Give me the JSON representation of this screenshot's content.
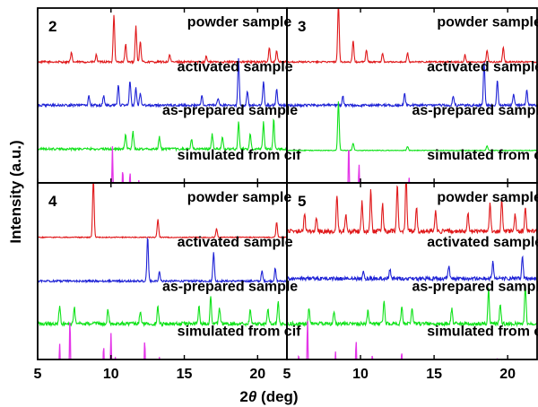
{
  "figure": {
    "ylabel": "Intensity (a.u.)",
    "xlabel_prefix": "2",
    "xlabel_theta": "θ",
    "xlabel_suffix": " (deg)"
  },
  "colors": {
    "powder": "#e0191b",
    "activated": "#1f23d6",
    "as_prepared": "#10e21a",
    "simulated": "#e436e8"
  },
  "chart_data": [
    {
      "type": "line",
      "panel": "2",
      "xlim": [
        5,
        22
      ],
      "xticks": [
        5,
        10,
        15,
        20
      ],
      "series": [
        {
          "name": "powder sample",
          "color": "#e0191b",
          "baseline": 0.02,
          "noise": 0.07,
          "peaks": [
            [
              7.3,
              0.15
            ],
            [
              9.0,
              0.12
            ],
            [
              10.2,
              0.8
            ],
            [
              11.0,
              0.3
            ],
            [
              11.7,
              0.6
            ],
            [
              12.0,
              0.35
            ],
            [
              14.0,
              0.12
            ],
            [
              16.5,
              0.1
            ],
            [
              20.8,
              0.25
            ],
            [
              21.3,
              0.2
            ]
          ]
        },
        {
          "name": "activated sample",
          "color": "#1f23d6",
          "baseline": 0.05,
          "noise": 0.1,
          "peaks": [
            [
              8.5,
              0.2
            ],
            [
              9.5,
              0.2
            ],
            [
              10.5,
              0.4
            ],
            [
              11.3,
              0.5
            ],
            [
              11.7,
              0.35
            ],
            [
              12.0,
              0.25
            ],
            [
              16.2,
              0.2
            ],
            [
              17.3,
              0.15
            ],
            [
              18.7,
              0.95
            ],
            [
              19.3,
              0.3
            ],
            [
              20.4,
              0.5
            ],
            [
              21.3,
              0.35
            ]
          ]
        },
        {
          "name": "as-prepared sample",
          "color": "#10e21a",
          "baseline": 0.05,
          "noise": 0.1,
          "peaks": [
            [
              11.0,
              0.3
            ],
            [
              11.5,
              0.35
            ],
            [
              13.3,
              0.25
            ],
            [
              15.5,
              0.2
            ],
            [
              16.9,
              0.3
            ],
            [
              17.6,
              0.25
            ],
            [
              18.7,
              0.55
            ],
            [
              19.5,
              0.3
            ],
            [
              20.4,
              0.55
            ],
            [
              21.1,
              0.6
            ]
          ]
        },
        {
          "name": "simulated from cif",
          "color": "#e436e8",
          "baseline": 0.0,
          "noise": 0.0,
          "peaks": [
            [
              6.0,
              0.25
            ],
            [
              10.1,
              0.95
            ],
            [
              10.8,
              0.5
            ],
            [
              11.3,
              0.45
            ],
            [
              11.9,
              0.3
            ],
            [
              13.2,
              0.15
            ],
            [
              14.3,
              0.1
            ],
            [
              15.2,
              0.1
            ],
            [
              16.0,
              0.12
            ],
            [
              17.2,
              0.15
            ],
            [
              18.5,
              0.2
            ],
            [
              19.4,
              0.15
            ],
            [
              20.5,
              0.2
            ],
            [
              21.5,
              0.15
            ]
          ]
        }
      ]
    },
    {
      "type": "line",
      "panel": "3",
      "xlim": [
        5,
        22
      ],
      "xticks": [
        5,
        10,
        15,
        20
      ],
      "series": [
        {
          "name": "powder sample",
          "color": "#e0191b",
          "baseline": 0.02,
          "noise": 0.05,
          "peaks": [
            [
              8.5,
              1.0
            ],
            [
              9.5,
              0.35
            ],
            [
              10.4,
              0.2
            ],
            [
              11.5,
              0.15
            ],
            [
              13.2,
              0.15
            ],
            [
              17.1,
              0.12
            ],
            [
              18.6,
              0.2
            ],
            [
              19.7,
              0.25
            ]
          ]
        },
        {
          "name": "activated sample",
          "color": "#1f23d6",
          "baseline": 0.05,
          "noise": 0.1,
          "peaks": [
            [
              8.8,
              0.2
            ],
            [
              13.0,
              0.25
            ],
            [
              16.3,
              0.2
            ],
            [
              18.4,
              0.9
            ],
            [
              19.3,
              0.5
            ],
            [
              20.4,
              0.25
            ],
            [
              21.3,
              0.3
            ]
          ]
        },
        {
          "name": "as-prepared sample",
          "color": "#10e21a",
          "baseline": 0.02,
          "noise": 0.03,
          "peaks": [
            [
              8.5,
              1.0
            ],
            [
              9.5,
              0.15
            ],
            [
              13.2,
              0.08
            ],
            [
              18.6,
              0.1
            ]
          ]
        },
        {
          "name": "simulated from cif",
          "color": "#e436e8",
          "baseline": 0.0,
          "noise": 0.0,
          "peaks": [
            [
              9.2,
              1.0
            ],
            [
              9.9,
              0.6
            ],
            [
              10.5,
              0.15
            ],
            [
              12.0,
              0.08
            ],
            [
              13.3,
              0.35
            ],
            [
              15.7,
              0.1
            ],
            [
              17.0,
              0.1
            ],
            [
              18.6,
              0.12
            ],
            [
              19.5,
              0.15
            ],
            [
              21.2,
              0.1
            ]
          ]
        }
      ]
    },
    {
      "type": "line",
      "panel": "4",
      "xlim": [
        5,
        22
      ],
      "xticks": [
        5,
        10,
        15,
        20
      ],
      "series": [
        {
          "name": "powder sample",
          "color": "#e0191b",
          "baseline": 0.02,
          "noise": 0.03,
          "peaks": [
            [
              8.8,
              1.0
            ],
            [
              13.2,
              0.3
            ],
            [
              17.2,
              0.15
            ],
            [
              21.3,
              0.25
            ]
          ]
        },
        {
          "name": "activated sample",
          "color": "#1f23d6",
          "baseline": 0.05,
          "noise": 0.08,
          "peaks": [
            [
              12.5,
              0.9
            ],
            [
              13.3,
              0.2
            ],
            [
              17.0,
              0.6
            ],
            [
              20.3,
              0.2
            ],
            [
              21.2,
              0.25
            ]
          ]
        },
        {
          "name": "as-prepared sample",
          "color": "#10e21a",
          "baseline": 0.08,
          "noise": 0.15,
          "peaks": [
            [
              6.5,
              0.35
            ],
            [
              7.5,
              0.35
            ],
            [
              9.8,
              0.3
            ],
            [
              12.0,
              0.25
            ],
            [
              13.2,
              0.35
            ],
            [
              16.0,
              0.35
            ],
            [
              16.8,
              0.55
            ],
            [
              17.4,
              0.3
            ],
            [
              19.5,
              0.3
            ],
            [
              20.7,
              0.3
            ],
            [
              21.4,
              0.45
            ]
          ]
        },
        {
          "name": "simulated from cif",
          "color": "#e436e8",
          "baseline": 0.0,
          "noise": 0.0,
          "peaks": [
            [
              6.5,
              0.55
            ],
            [
              7.2,
              1.0
            ],
            [
              9.5,
              0.5
            ],
            [
              10.0,
              0.75
            ],
            [
              10.3,
              0.3
            ],
            [
              12.3,
              0.6
            ],
            [
              13.3,
              0.3
            ],
            [
              14.6,
              0.15
            ],
            [
              15.4,
              0.15
            ],
            [
              16.0,
              0.25
            ],
            [
              16.6,
              0.2
            ],
            [
              16.9,
              0.2
            ],
            [
              17.5,
              0.15
            ],
            [
              20.0,
              0.15
            ],
            [
              20.8,
              0.2
            ],
            [
              21.6,
              0.15
            ]
          ]
        }
      ]
    },
    {
      "type": "line",
      "panel": "5",
      "xlim": [
        5,
        22
      ],
      "xticks": [
        5,
        10,
        15,
        20
      ],
      "series": [
        {
          "name": "powder sample",
          "color": "#e0191b",
          "baseline": 0.12,
          "noise": 0.15,
          "peaks": [
            [
              6.2,
              0.3
            ],
            [
              7.0,
              0.25
            ],
            [
              8.4,
              0.6
            ],
            [
              9.0,
              0.3
            ],
            [
              10.1,
              0.5
            ],
            [
              10.7,
              0.7
            ],
            [
              11.5,
              0.45
            ],
            [
              12.5,
              0.8
            ],
            [
              13.1,
              0.95
            ],
            [
              13.8,
              0.4
            ],
            [
              15.1,
              0.35
            ],
            [
              17.3,
              0.3
            ],
            [
              18.8,
              0.5
            ],
            [
              19.6,
              0.55
            ],
            [
              20.5,
              0.3
            ],
            [
              21.2,
              0.4
            ]
          ]
        },
        {
          "name": "activated sample",
          "color": "#1f23d6",
          "baseline": 0.1,
          "noise": 0.15,
          "peaks": [
            [
              10.2,
              0.15
            ],
            [
              12.0,
              0.2
            ],
            [
              16.0,
              0.25
            ],
            [
              19.0,
              0.35
            ],
            [
              21.0,
              0.45
            ]
          ]
        },
        {
          "name": "as-prepared sample",
          "color": "#10e21a",
          "baseline": 0.08,
          "noise": 0.15,
          "peaks": [
            [
              6.5,
              0.3
            ],
            [
              8.2,
              0.25
            ],
            [
              10.5,
              0.25
            ],
            [
              11.6,
              0.45
            ],
            [
              12.8,
              0.35
            ],
            [
              13.5,
              0.3
            ],
            [
              16.2,
              0.3
            ],
            [
              18.7,
              0.7
            ],
            [
              19.5,
              0.4
            ],
            [
              21.2,
              0.8
            ]
          ]
        },
        {
          "name": "simulated from cif",
          "color": "#e436e8",
          "baseline": 0.0,
          "noise": 0.0,
          "peaks": [
            [
              5.8,
              0.35
            ],
            [
              6.4,
              1.0
            ],
            [
              7.3,
              0.25
            ],
            [
              8.3,
              0.4
            ],
            [
              9.3,
              0.15
            ],
            [
              9.7,
              0.6
            ],
            [
              10.8,
              0.35
            ],
            [
              11.3,
              0.2
            ],
            [
              12.4,
              0.15
            ],
            [
              12.8,
              0.4
            ],
            [
              13.5,
              0.2
            ],
            [
              15.0,
              0.15
            ],
            [
              16.5,
              0.15
            ],
            [
              18.0,
              0.25
            ],
            [
              18.8,
              0.25
            ],
            [
              19.3,
              0.3
            ],
            [
              20.3,
              0.2
            ],
            [
              21.3,
              0.2
            ]
          ]
        }
      ]
    }
  ]
}
